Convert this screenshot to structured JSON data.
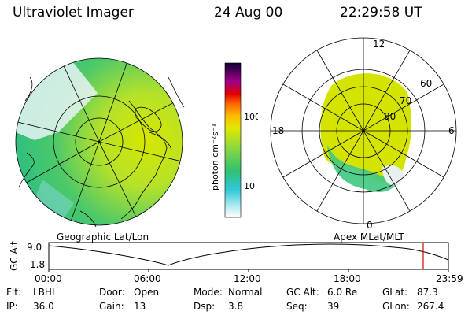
{
  "header": {
    "instrument": "Ultraviolet Imager",
    "date": "24 Aug 00",
    "time": "22:29:58 UT"
  },
  "geo_panel": {
    "label": "Geographic Lat/Lon"
  },
  "apex_panel": {
    "label": "Apex MLat/MLT",
    "mlt_labels": [
      "12",
      "18",
      "6",
      "0"
    ],
    "mlat_labels": [
      "60",
      "70",
      "80"
    ]
  },
  "colorbar": {
    "unit_label": "photon cm⁻²s⁻¹",
    "tick_labels": [
      "100",
      "10"
    ],
    "scale": "log"
  },
  "altitude_plot": {
    "ylabel": "GC Alt",
    "y_ticks": [
      "9.0",
      "1.8"
    ],
    "x_ticks": [
      "00:00",
      "06:00",
      "12:00",
      "18:00",
      "23:59"
    ],
    "marker_color": "#e00000"
  },
  "info": {
    "row1": [
      {
        "key": "Flt:",
        "value": "LBHL"
      },
      {
        "key": "Door:",
        "value": "Open"
      },
      {
        "key": "Mode:",
        "value": "Normal"
      },
      {
        "key": "GC Alt:",
        "value": "6.0 Re"
      },
      {
        "key": "GLat:",
        "value": "87.3"
      }
    ],
    "row2": [
      {
        "key": "IP:",
        "value": "36.0"
      },
      {
        "key": "Gain:",
        "value": "13"
      },
      {
        "key": "Dsp:",
        "value": "3.8"
      },
      {
        "key": "Seq:",
        "value": "39"
      },
      {
        "key": "GLon:",
        "value": "267.4"
      }
    ]
  }
}
